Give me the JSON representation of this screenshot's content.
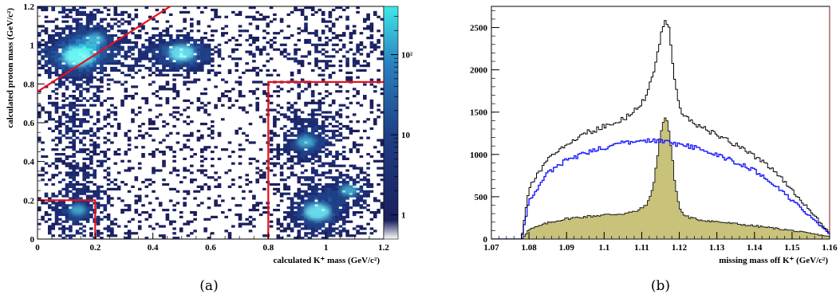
{
  "panels": [
    {
      "label": "(a)"
    },
    {
      "label": "(b)"
    }
  ],
  "colors": {
    "cut_lines": "#e8101a",
    "total_histogram": "#000000",
    "blue_histogram": "#1a1aff",
    "filled_histogram": "#c8c27a",
    "filled_outline": "#222222",
    "colorbar_low": "#1b1f5c",
    "colorbar_mid": "#2a6fb0",
    "colorbar_high": "#3fe8e8"
  },
  "chart_data": [
    {
      "type": "heatmap",
      "xlabel": "calculated K⁺ mass (GeV/c²)",
      "ylabel": "calculated proton mass (GeV/c²)",
      "xlim": [
        0,
        1.2
      ],
      "ylim": [
        0,
        1.2
      ],
      "x_ticks": [
        "0",
        "0.2",
        "0.4",
        "0.6",
        "0.8",
        "1",
        "1.2"
      ],
      "y_ticks": [
        "0",
        "0.2",
        "0.4",
        "0.6",
        "0.8",
        "1",
        "1.2"
      ],
      "colorbar": {
        "scale": "log",
        "range": [
          0.5,
          400
        ],
        "ticks": [
          "1",
          "10",
          "10²"
        ],
        "tick_values": [
          1,
          10,
          100
        ]
      },
      "hotspots": [
        {
          "x": 0.14,
          "y": 0.94,
          "weight": 1.0
        },
        {
          "x": 0.5,
          "y": 0.96,
          "weight": 0.85
        },
        {
          "x": 0.2,
          "y": 1.03,
          "weight": 0.55
        },
        {
          "x": 0.14,
          "y": 0.15,
          "weight": 0.45
        },
        {
          "x": 0.97,
          "y": 0.14,
          "weight": 0.9
        },
        {
          "x": 0.93,
          "y": 0.5,
          "weight": 0.55
        },
        {
          "x": 1.08,
          "y": 0.25,
          "weight": 0.5
        }
      ],
      "cut_lines": [
        {
          "x": [
            0,
            0.46
          ],
          "y": [
            0.76,
            1.2
          ]
        },
        {
          "x": [
            0,
            0.2,
            0.2
          ],
          "y": [
            0.2,
            0.2,
            0
          ]
        },
        {
          "x": [
            0.8,
            0.8,
            1.2
          ],
          "y": [
            0,
            0.81,
            0.81
          ]
        }
      ],
      "grid": false,
      "legend": "none"
    },
    {
      "type": "line",
      "xlabel": "missing mass off K⁺ (GeV/c²)",
      "ylabel": "",
      "xlim": [
        1.07,
        1.16
      ],
      "ylim": [
        0,
        2750
      ],
      "x_ticks": [
        "1.07",
        "1.08",
        "1.09",
        "1.1",
        "1.11",
        "1.12",
        "1.13",
        "1.14",
        "1.15",
        "1.16"
      ],
      "y_ticks": [
        "0",
        "500",
        "1000",
        "1500",
        "2000",
        "2500"
      ],
      "grid": false,
      "legend": "none",
      "series": [
        {
          "style": "step-black",
          "x": [
            1.07,
            1.078,
            1.079,
            1.08,
            1.085,
            1.09,
            1.095,
            1.1,
            1.105,
            1.108,
            1.11,
            1.112,
            1.114,
            1.115,
            1.116,
            1.117,
            1.118,
            1.119,
            1.12,
            1.122,
            1.125,
            1.13,
            1.135,
            1.14,
            1.145,
            1.15,
            1.155,
            1.158,
            1.16
          ],
          "y": [
            0,
            0,
            300,
            600,
            950,
            1130,
            1250,
            1330,
            1420,
            1500,
            1600,
            1780,
            2100,
            2400,
            2600,
            2550,
            2200,
            1800,
            1550,
            1420,
            1340,
            1230,
            1120,
            980,
            820,
            580,
            330,
            170,
            80
          ]
        },
        {
          "style": "step-blue",
          "x": [
            1.07,
            1.078,
            1.079,
            1.08,
            1.085,
            1.09,
            1.095,
            1.1,
            1.105,
            1.11,
            1.115,
            1.12,
            1.125,
            1.13,
            1.135,
            1.14,
            1.145,
            1.15,
            1.155,
            1.158,
            1.16
          ],
          "y": [
            0,
            0,
            220,
            450,
            780,
            930,
            1020,
            1080,
            1140,
            1160,
            1150,
            1120,
            1070,
            1000,
            910,
            810,
            650,
            460,
            260,
            140,
            60
          ]
        },
        {
          "style": "filled",
          "x": [
            1.07,
            1.078,
            1.079,
            1.08,
            1.085,
            1.09,
            1.095,
            1.1,
            1.105,
            1.108,
            1.11,
            1.112,
            1.113,
            1.114,
            1.115,
            1.116,
            1.117,
            1.118,
            1.119,
            1.12,
            1.121,
            1.123,
            1.125,
            1.13,
            1.135,
            1.14,
            1.145,
            1.15,
            1.155,
            1.16
          ],
          "y": [
            0,
            0,
            50,
            110,
            190,
            240,
            265,
            285,
            300,
            320,
            360,
            450,
            620,
            900,
            1250,
            1450,
            1380,
            1000,
            620,
            380,
            290,
            250,
            230,
            205,
            180,
            155,
            130,
            100,
            65,
            30
          ]
        }
      ]
    }
  ]
}
